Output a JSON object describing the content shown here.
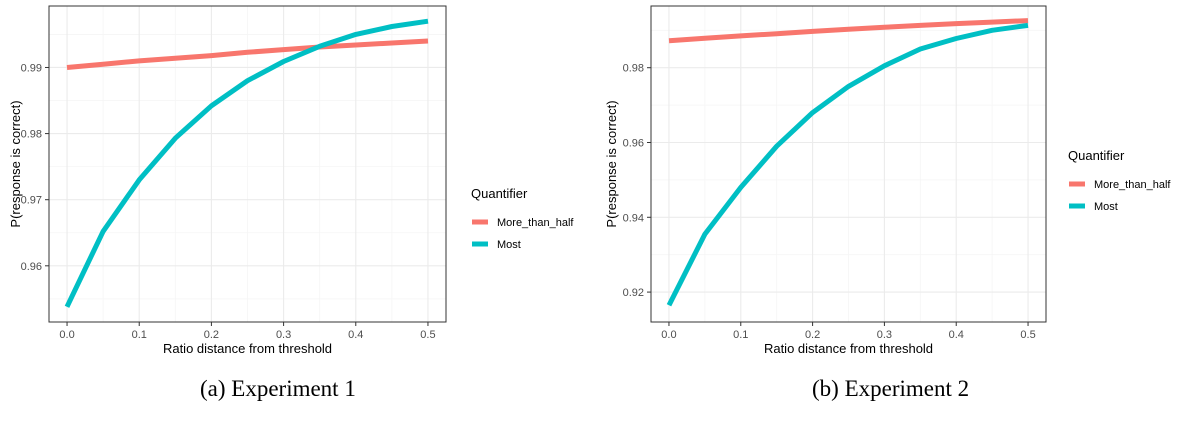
{
  "colors": {
    "More_than_half": "#F8766D",
    "Most": "#00BFC4",
    "grid_major": "#EBEBEB",
    "grid_minor": "#F5F5F5",
    "panel_border": "#333333"
  },
  "chart_data": [
    {
      "type": "line",
      "caption": "(a) Experiment 1",
      "xlabel": "Ratio distance from threshold",
      "ylabel": "P(response is correct)",
      "xlim": [
        -0.025,
        0.525
      ],
      "ylim": [
        0.9515,
        0.9993
      ],
      "xticks": [
        0,
        0.1,
        0.2,
        0.3,
        0.4,
        0.5
      ],
      "xtick_labels": [
        "0.0",
        "0.1",
        "0.2",
        "0.3",
        "0.4",
        "0.5"
      ],
      "yticks": [
        0.96,
        0.97,
        0.98,
        0.99
      ],
      "ytick_labels": [
        "0.96",
        "0.97",
        "0.98",
        "0.99"
      ],
      "grid": true,
      "legend": {
        "title": "Quantifier",
        "position": "right",
        "entries": [
          "More_than_half",
          "Most"
        ]
      },
      "x": [
        0,
        0.05,
        0.1,
        0.15,
        0.2,
        0.25,
        0.3,
        0.35,
        0.4,
        0.45,
        0.5
      ],
      "series": [
        {
          "name": "More_than_half",
          "values": [
            0.99,
            0.9905,
            0.991,
            0.9914,
            0.9918,
            0.9923,
            0.9927,
            0.9931,
            0.9934,
            0.9937,
            0.994
          ]
        },
        {
          "name": "Most",
          "values": [
            0.9538,
            0.9652,
            0.973,
            0.9793,
            0.9842,
            0.988,
            0.9909,
            0.9932,
            0.995,
            0.9962,
            0.997
          ]
        }
      ]
    },
    {
      "type": "line",
      "caption": "(b) Experiment 2",
      "xlabel": "Ratio distance from threshold",
      "ylabel": "P(response is correct)",
      "xlim": [
        -0.025,
        0.525
      ],
      "ylim": [
        0.912,
        0.9965
      ],
      "xticks": [
        0,
        0.1,
        0.2,
        0.3,
        0.4,
        0.5
      ],
      "xtick_labels": [
        "0.0",
        "0.1",
        "0.2",
        "0.3",
        "0.4",
        "0.5"
      ],
      "yticks": [
        0.92,
        0.94,
        0.96,
        0.98
      ],
      "ytick_labels": [
        "0.92",
        "0.94",
        "0.96",
        "0.98"
      ],
      "grid": true,
      "legend": {
        "title": "Quantifier",
        "position": "right",
        "entries": [
          "More_than_half",
          "Most"
        ]
      },
      "x": [
        0,
        0.05,
        0.1,
        0.15,
        0.2,
        0.25,
        0.3,
        0.35,
        0.4,
        0.45,
        0.5
      ],
      "series": [
        {
          "name": "More_than_half",
          "values": [
            0.9872,
            0.9879,
            0.9885,
            0.9891,
            0.9897,
            0.9903,
            0.9908,
            0.9913,
            0.9918,
            0.9922,
            0.9926
          ]
        },
        {
          "name": "Most",
          "values": [
            0.9165,
            0.9355,
            0.948,
            0.959,
            0.968,
            0.975,
            0.9805,
            0.985,
            0.9878,
            0.99,
            0.9913
          ]
        }
      ]
    }
  ]
}
